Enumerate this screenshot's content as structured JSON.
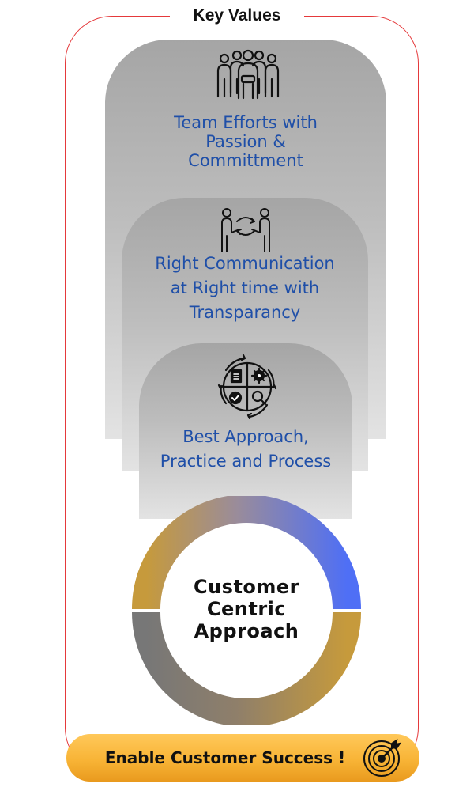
{
  "title": "Key Values",
  "values": [
    {
      "lines": [
        "Team Efforts with",
        "Passion &",
        "Committment"
      ],
      "icon": "team-icon"
    },
    {
      "lines": [
        "Right Communication",
        "at Right time with",
        "Transparancy"
      ],
      "icon": "handshake-communication-icon"
    },
    {
      "lines": [
        "Best Approach,",
        "Practice and Process"
      ],
      "icon": "process-cycle-icon"
    }
  ],
  "center": {
    "lines": [
      "Customer",
      "Centric",
      "Approach"
    ]
  },
  "banner": {
    "label": "Enable Customer Success !",
    "icon": "target-icon"
  },
  "colors": {
    "frame": "#e5393b",
    "value_text": "#1f4fa8",
    "ring_blue": "#4f6ff5",
    "ring_gold": "#c69a3c",
    "ring_gray": "#777777",
    "banner": "#f8b436"
  }
}
